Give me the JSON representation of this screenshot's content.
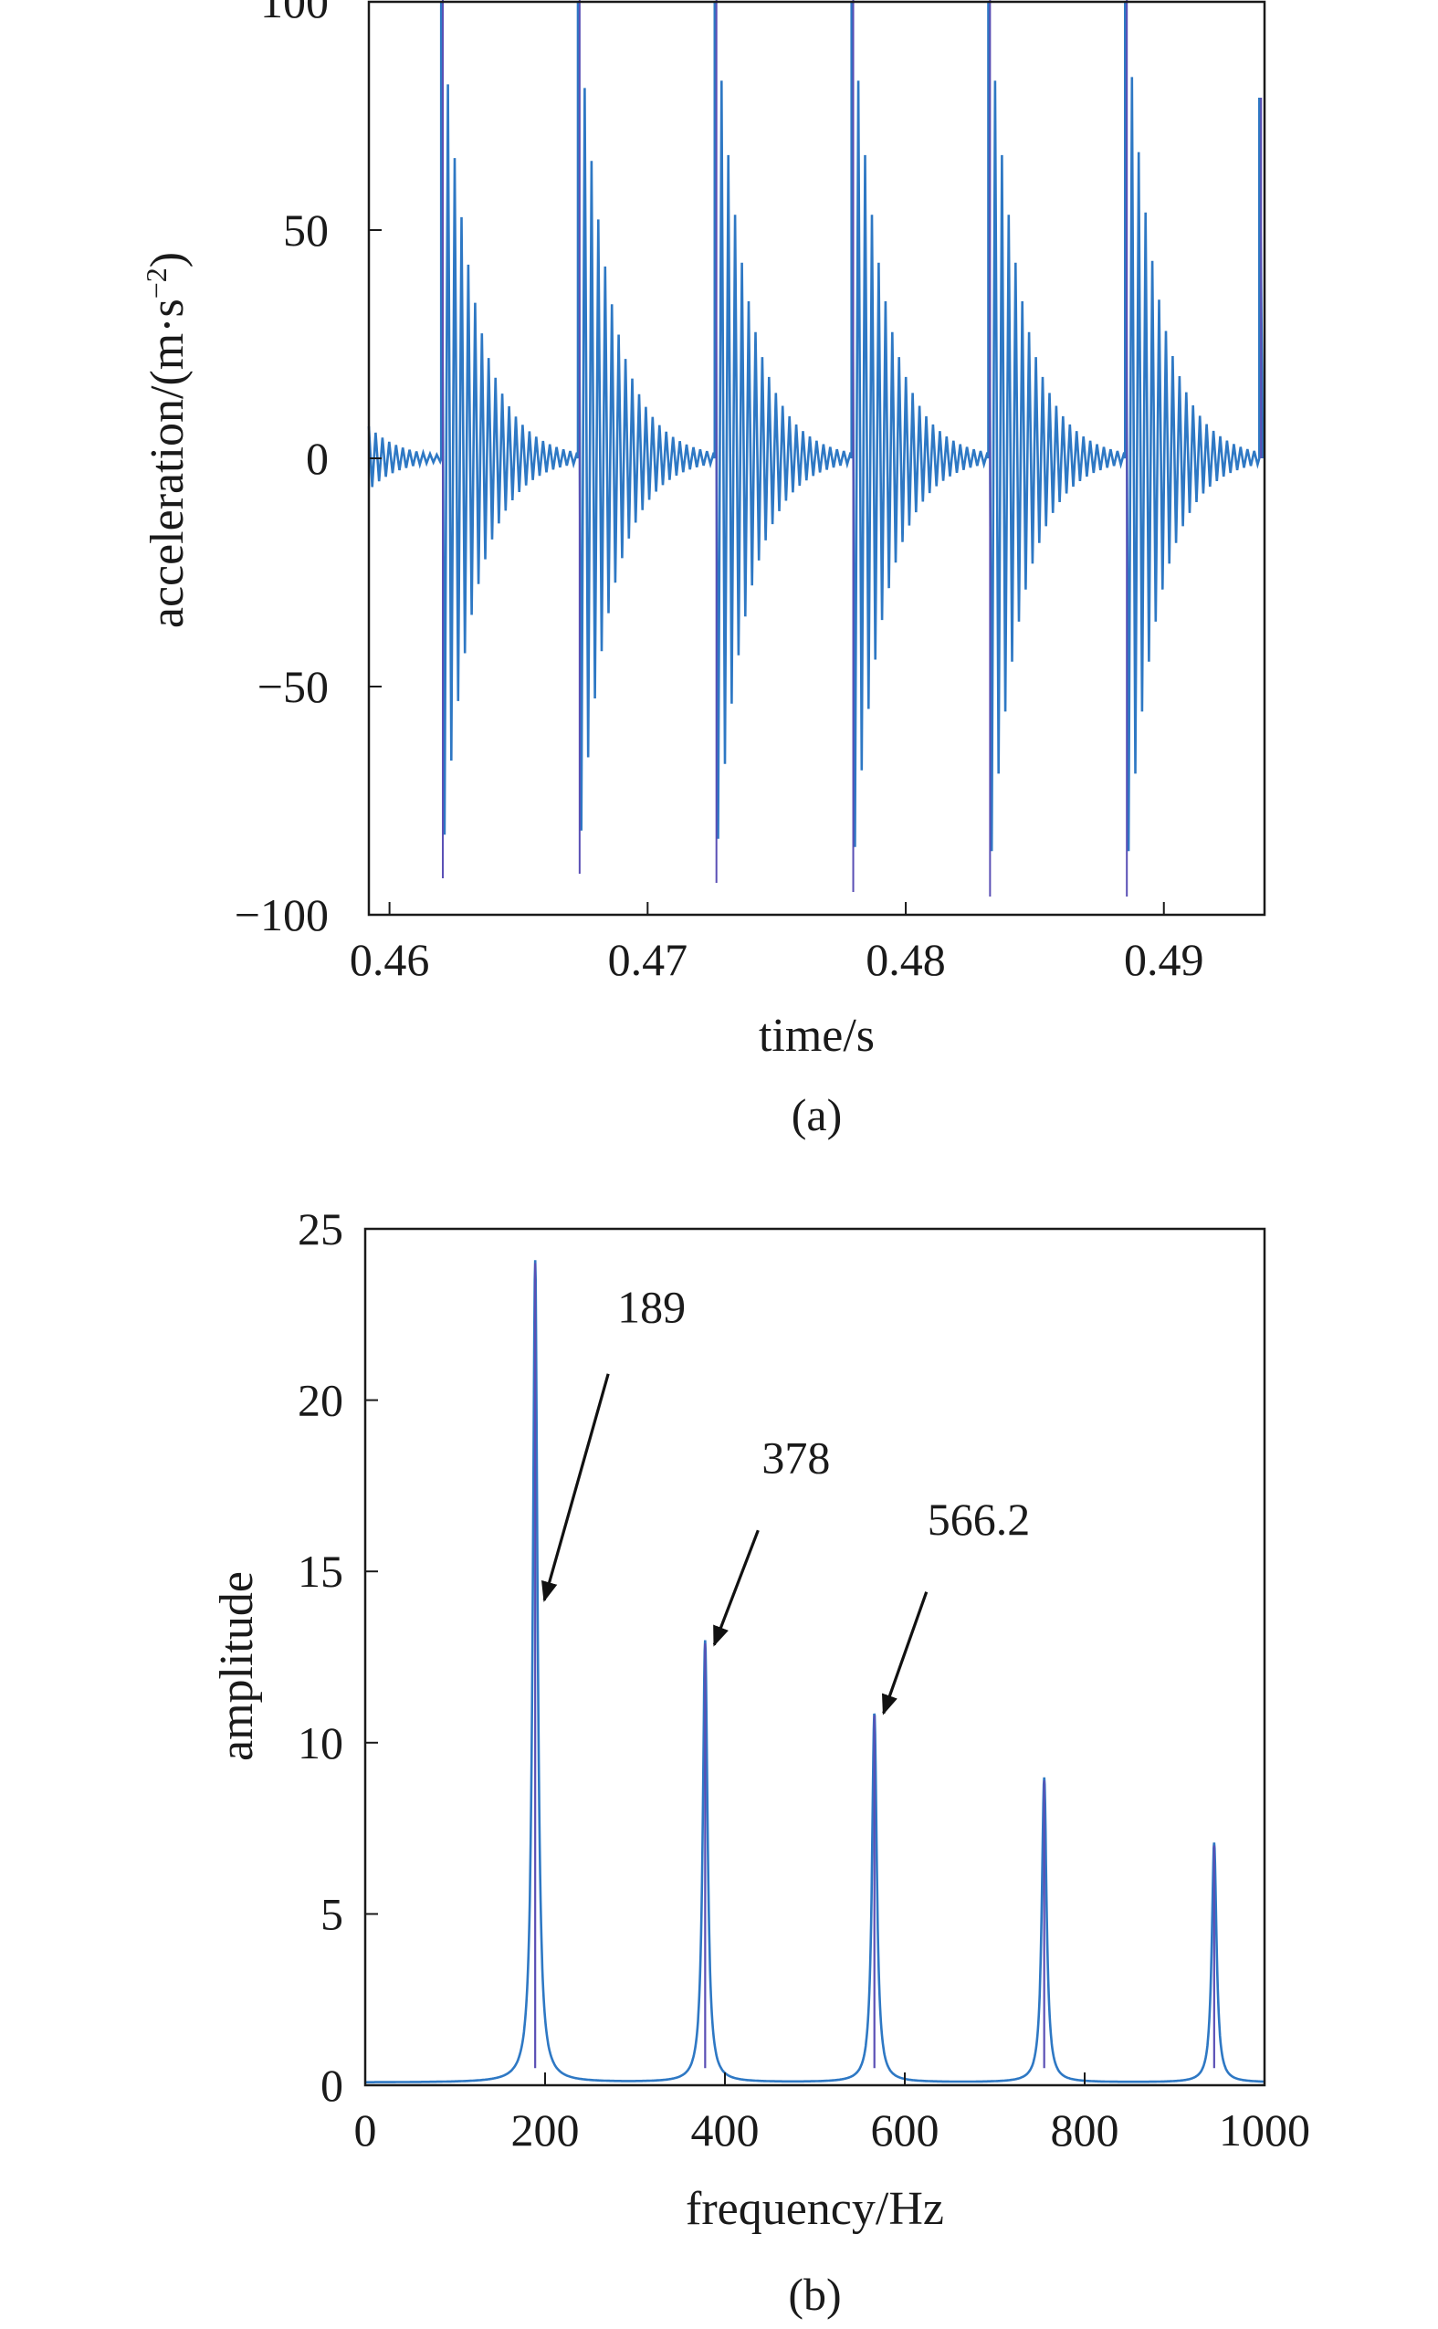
{
  "colors": {
    "series": "#2e78c4",
    "series_dark": "#5a4fb5",
    "axis": "#1a1a1a",
    "annotation": "#111111"
  },
  "chart_data": [
    {
      "type": "line",
      "caption": "(a)",
      "xlabel": "time/s",
      "ylabel_main": "acceleration/(m·s",
      "ylabel_sup": "−2",
      "ylabel_close": ")",
      "xlim": [
        0.4592,
        0.4939
      ],
      "ylim": [
        -100,
        100
      ],
      "xticks": [
        0.46,
        0.47,
        0.48,
        0.49
      ],
      "xtick_labels": [
        "0.46",
        "0.47",
        "0.48",
        "0.49"
      ],
      "yticks": [
        -100,
        -50,
        0,
        50,
        100
      ],
      "ytick_labels": [
        "−100",
        "−50",
        "0",
        "50",
        "100"
      ],
      "grid": false,
      "legend": "none",
      "signal": {
        "impact_times": [
          0.462,
          0.4673,
          0.4726,
          0.4779,
          0.4832,
          0.4885,
          0.4937
        ],
        "peak_max": [
          102,
          101,
          103,
          103,
          103,
          104,
          79
        ],
        "peak_min": [
          -92,
          -91,
          -93,
          -95,
          -96,
          -96,
          0
        ],
        "initial_amplitude": 7,
        "carrier_frequency_hz": 3800,
        "decay_time_constant_s": 0.0012
      }
    },
    {
      "type": "line",
      "caption": "(b)",
      "xlabel": "frequency/Hz",
      "ylabel": "amplitude",
      "xlim": [
        0,
        1000
      ],
      "ylim": [
        0,
        25
      ],
      "xticks": [
        0,
        200,
        400,
        600,
        800,
        1000
      ],
      "xtick_labels": [
        "0",
        "200",
        "400",
        "600",
        "800",
        "1000"
      ],
      "yticks": [
        0,
        5,
        10,
        15,
        20,
        25
      ],
      "ytick_labels": [
        "0",
        "5",
        "10",
        "15",
        "20",
        "25"
      ],
      "grid": false,
      "legend": "none",
      "peaks": [
        {
          "frequency": 189,
          "amplitude": 24.0
        },
        {
          "frequency": 378,
          "amplitude": 12.9
        },
        {
          "frequency": 566.2,
          "amplitude": 10.8
        },
        {
          "frequency": 755,
          "amplitude": 8.9
        },
        {
          "frequency": 944,
          "amplitude": 7.0
        }
      ],
      "annotations": [
        {
          "text": "189",
          "frequency": 189,
          "amplitude": 24.0,
          "arrow_tip_amplitude": 14.0
        },
        {
          "text": "378",
          "frequency": 378,
          "amplitude": 12.9,
          "arrow_tip_amplitude": 12.7
        },
        {
          "text": "566.2",
          "frequency": 566.2,
          "amplitude": 10.8,
          "arrow_tip_amplitude": 10.7
        }
      ]
    }
  ]
}
